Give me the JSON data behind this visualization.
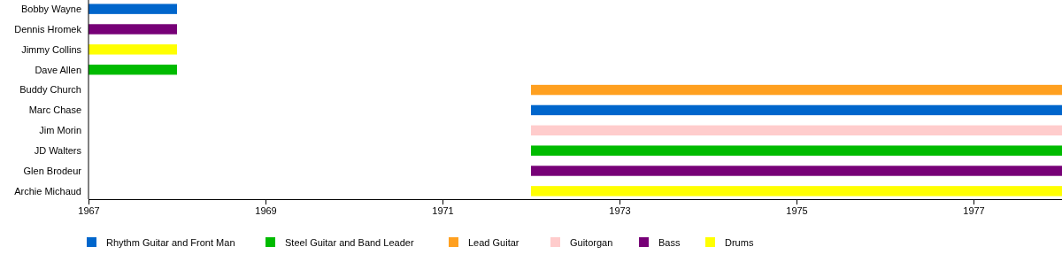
{
  "chart_data": {
    "type": "bar",
    "orientation": "horizontal",
    "categories": [
      "Bobby Wayne",
      "Dennis Hromek",
      "Jimmy Collins",
      "Dave Allen",
      "Buddy Church",
      "Marc Chase",
      "Jim Morin",
      "JD Walters",
      "Glen Brodeur",
      "Archie Michaud"
    ],
    "series": [
      {
        "name": "Rhythm Guitar and Front Man",
        "color": "#0066cc",
        "values": [
          1,
          null,
          null,
          null,
          null,
          6,
          null,
          null,
          null,
          null
        ],
        "base": [
          1967,
          null,
          null,
          null,
          null,
          1972,
          null,
          null,
          null,
          null
        ]
      },
      {
        "name": "Steel Guitar and Band Leader",
        "color": "#00bb00",
        "values": [
          null,
          null,
          null,
          1,
          null,
          null,
          null,
          6,
          null,
          null
        ],
        "base": [
          null,
          null,
          null,
          1967,
          null,
          null,
          null,
          1972,
          null,
          null
        ]
      },
      {
        "name": "Lead Guitar",
        "color": "#ffa020",
        "values": [
          null,
          null,
          null,
          null,
          6,
          null,
          null,
          null,
          null,
          null
        ],
        "base": [
          null,
          null,
          null,
          null,
          1972,
          null,
          null,
          null,
          null,
          null
        ]
      },
      {
        "name": "Guitorgan",
        "color": "#ffcccc",
        "values": [
          null,
          null,
          null,
          null,
          null,
          null,
          6,
          null,
          null,
          null
        ],
        "base": [
          null,
          null,
          null,
          null,
          null,
          null,
          1972,
          null,
          null,
          null
        ]
      },
      {
        "name": "Bass",
        "color": "#770077",
        "values": [
          null,
          1,
          null,
          null,
          null,
          null,
          null,
          null,
          6,
          null
        ],
        "base": [
          null,
          1967,
          null,
          null,
          null,
          null,
          null,
          null,
          1972,
          null
        ]
      },
      {
        "name": "Drums",
        "color": "#ffff00",
        "values": [
          null,
          null,
          1,
          null,
          null,
          null,
          null,
          null,
          null,
          6
        ],
        "base": [
          null,
          null,
          1967,
          null,
          null,
          null,
          null,
          null,
          null,
          1972
        ]
      }
    ],
    "xlim": [
      1967,
      1978
    ],
    "xticks": [
      1967,
      1969,
      1971,
      1973,
      1975,
      1977
    ],
    "grid": false,
    "legend": "bottom"
  }
}
